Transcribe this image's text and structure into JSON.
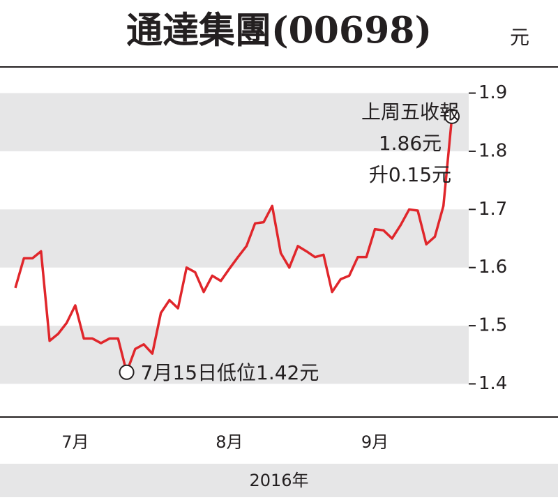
{
  "chart_data": {
    "type": "line",
    "title": "通達集團(00698)",
    "unit": "元",
    "xlabel": "2016年",
    "series": [
      {
        "name": "通達集團",
        "color": "#e0262b",
        "values": [
          1.565,
          1.616,
          1.616,
          1.628,
          1.474,
          1.486,
          1.505,
          1.535,
          1.478,
          1.478,
          1.47,
          1.478,
          1.478,
          1.42,
          1.46,
          1.468,
          1.452,
          1.522,
          1.544,
          1.53,
          1.6,
          1.592,
          1.558,
          1.586,
          1.577,
          1.598,
          1.618,
          1.637,
          1.676,
          1.678,
          1.706,
          1.625,
          1.6,
          1.637,
          1.628,
          1.618,
          1.622,
          1.558,
          1.58,
          1.586,
          1.618,
          1.618,
          1.666,
          1.664,
          1.65,
          1.673,
          1.7,
          1.698,
          1.64,
          1.653,
          1.706,
          1.86
        ]
      }
    ],
    "xticks": [
      {
        "value": 7,
        "label": "7月"
      },
      {
        "value": 25,
        "label": "8月"
      },
      {
        "value": 42,
        "label": "9月"
      }
    ],
    "ylim": [
      1.343,
      1.945
    ],
    "yticks": [
      1.4,
      1.5,
      1.6,
      1.7,
      1.8,
      1.9
    ],
    "grid": "bands",
    "band_color": "#e6e6e7",
    "annotations": [
      {
        "point": 51,
        "lines": [
          "上周五收報",
          "1.86元",
          "升0.15元"
        ]
      },
      {
        "point": 13,
        "lines": [
          "7月15日低位1.42元"
        ]
      }
    ]
  }
}
